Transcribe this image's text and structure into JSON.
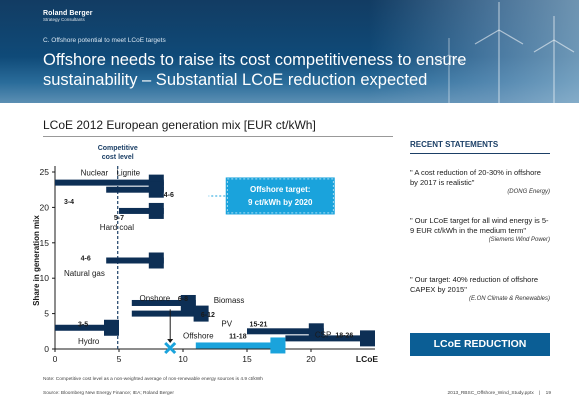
{
  "header": {
    "brand_name": "Roland Berger",
    "brand_sub": "Strategy Consultants",
    "section": "C.   Offshore potential to meet LCoE targets",
    "title": "Offshore needs to raise its cost competitiveness to ensure sustainability – Substantial LCoE reduction expected"
  },
  "chart_title": "LCoE 2012 European generation mix [EUR ct/kWh]",
  "chart_data": {
    "type": "bar",
    "orientation": "horizontal-range",
    "xlabel": "LCoE",
    "ylabel": "Share in generation mix",
    "xlim": [
      0,
      25
    ],
    "ylim": [
      0,
      25
    ],
    "xticks": [
      "0",
      "5",
      "10",
      "15",
      "20"
    ],
    "yticks": [
      "0",
      "5",
      "10",
      "15",
      "20",
      "25"
    ],
    "reference_line": {
      "label": "Competitive cost level",
      "x": 4.9
    },
    "target": {
      "label": "Offshore target: 9 ct/kWh by 2020",
      "x": 9,
      "y": 0
    },
    "series": [
      {
        "name": "Nuclear",
        "range_label": "3-4",
        "x": [
          3,
          4
        ],
        "y": 23.5,
        "bar_from": 0,
        "bar_to": 8.5,
        "color": "#0d2f55"
      },
      {
        "name": "Lignite",
        "range_label": "4-6",
        "x": [
          4,
          6
        ],
        "y": 22.5,
        "bar_from": 4,
        "bar_to": 8.5,
        "color": "#0d2f55"
      },
      {
        "name": "Hard coal",
        "range_label": "5-7",
        "x": [
          5,
          7
        ],
        "y": 19.5,
        "bar_from": 5,
        "bar_to": 8.5,
        "color": "#0d2f55"
      },
      {
        "name": "Natural gas",
        "range_label": "4-6",
        "x": [
          4,
          6
        ],
        "y": 12.5,
        "bar_from": 4,
        "bar_to": 8.5,
        "color": "#0d2f55"
      },
      {
        "name": "Onshore",
        "range_label": "6-8",
        "x": [
          6,
          8
        ],
        "y": 6.5,
        "bar_from": 6,
        "bar_to": 11,
        "color": "#0d2f55"
      },
      {
        "name": "Biomass",
        "range_label": "6-12",
        "x": [
          6,
          12
        ],
        "y": 5,
        "bar_from": 6,
        "bar_to": 12,
        "color": "#0d2f55"
      },
      {
        "name": "Hydro",
        "range_label": "3-5",
        "x": [
          3,
          5
        ],
        "y": 3,
        "bar_from": 0,
        "bar_to": 5,
        "color": "#0d2f55"
      },
      {
        "name": "PV",
        "range_label": "15-21",
        "x": [
          15,
          21
        ],
        "y": 2.5,
        "bar_from": 15,
        "bar_to": 21,
        "color": "#0d2f55"
      },
      {
        "name": "CSP",
        "range_label": "18-26",
        "x": [
          18,
          26
        ],
        "y": 1.5,
        "bar_from": 18,
        "bar_to": 26,
        "color": "#0d2f55"
      },
      {
        "name": "Offshore",
        "range_label": "11-18",
        "x": [
          11,
          18
        ],
        "y": 0.5,
        "bar_from": 11,
        "bar_to": 18,
        "color": "#1aa3dc"
      }
    ],
    "colors": {
      "bar": "#0d2f55",
      "offshore": "#1aa3dc",
      "target": "#1aa3dc",
      "reference": "#1b3f66"
    }
  },
  "statements": {
    "heading": "RECENT STATEMENTS",
    "items": [
      {
        "text": "\" A cost reduction of 20-30% in offshore by 2017 is realistic\"",
        "source": "(DONG Energy)"
      },
      {
        "text": "\" Our LCoE target for all wind energy is 5-9 EUR ct/kWh in the medium term\"",
        "source": "(Siemens Wind Power)"
      },
      {
        "text": "\" Our target: 40% reduction of offshore CAPEX by 2015\"",
        "source": "(E.ON Climate & Renewables)"
      }
    ],
    "button": "LCoE REDUCTION"
  },
  "note": "Note: Competitive cost level as a non-weighted average of non-renewable energy sources is 4.9 ct/kWh",
  "source": "Source:  Bloomberg New Energy Finance; IEA; Roland Berger",
  "footer_file": "2013_RBSC_Offshore_Wind_Study.pptx",
  "footer_sep": "|",
  "page_number": "19"
}
